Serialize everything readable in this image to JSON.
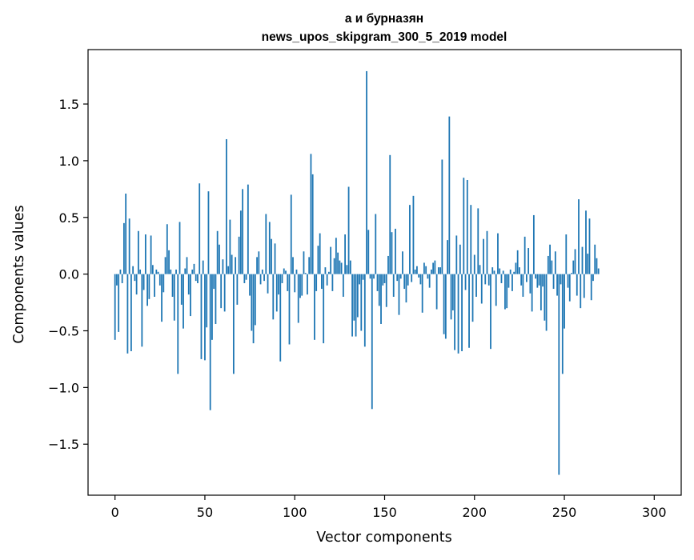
{
  "chart_data": {
    "type": "bar",
    "title": "а и бурназян",
    "subtitle": "news_upos_skipgram_300_5_2019 model",
    "xlabel": "Vector components",
    "ylabel": "Components values",
    "xlim": [
      -15,
      315
    ],
    "ylim": [
      -1.95,
      1.98
    ],
    "xticks": [
      0,
      50,
      100,
      150,
      200,
      250,
      300
    ],
    "xtick_labels": [
      "0",
      "50",
      "100",
      "150",
      "200",
      "250",
      "300"
    ],
    "yticks": [
      -1.5,
      -1.0,
      -0.5,
      0.0,
      0.5,
      1.0,
      1.5
    ],
    "ytick_labels": [
      "−1.5",
      "−1.0",
      "−0.5",
      "0.0",
      "0.5",
      "1.0",
      "1.5"
    ],
    "grid": false,
    "bar_color": "#1f77b4",
    "series": [
      {
        "name": "components",
        "values": [
          -0.58,
          -0.1,
          -0.51,
          0.04,
          -0.08,
          0.45,
          0.71,
          -0.7,
          0.49,
          -0.68,
          0.07,
          -0.06,
          -0.18,
          0.38,
          0.04,
          -0.64,
          -0.14,
          0.35,
          -0.28,
          -0.22,
          0.34,
          0.08,
          -0.2,
          0.04,
          0.02,
          -0.1,
          -0.42,
          -0.16,
          0.15,
          0.44,
          0.21,
          0.04,
          -0.2,
          -0.41,
          0.04,
          -0.88,
          0.46,
          -0.27,
          -0.48,
          0.05,
          0.15,
          -0.18,
          -0.37,
          0.04,
          0.09,
          -0.06,
          -0.08,
          0.8,
          -0.75,
          0.12,
          -0.76,
          -0.47,
          0.73,
          -1.2,
          -0.58,
          -0.13,
          -0.44,
          0.38,
          0.26,
          -0.3,
          0.13,
          -0.33,
          1.19,
          0.07,
          0.48,
          0.17,
          -0.88,
          0.15,
          -0.27,
          0.33,
          0.56,
          0.75,
          -0.08,
          -0.05,
          0.79,
          -0.19,
          -0.5,
          -0.61,
          -0.45,
          0.15,
          0.2,
          -0.09,
          0.04,
          -0.06,
          0.53,
          -0.17,
          0.46,
          0.31,
          -0.4,
          0.27,
          -0.33,
          -0.18,
          -0.77,
          -0.08,
          0.05,
          0.03,
          -0.15,
          -0.62,
          0.7,
          0.15,
          -0.16,
          0.04,
          -0.43,
          -0.21,
          -0.19,
          0.2,
          0.01,
          -0.18,
          0.15,
          1.06,
          0.88,
          -0.58,
          -0.15,
          0.25,
          0.36,
          -0.13,
          -0.61,
          0.06,
          -0.1,
          0.02,
          0.24,
          -0.15,
          0.14,
          0.32,
          0.19,
          0.12,
          0.1,
          -0.2,
          0.35,
          0.08,
          0.77,
          0.12,
          -0.55,
          -0.41,
          -0.55,
          -0.38,
          -0.09,
          -0.5,
          -0.05,
          -0.64,
          1.79,
          0.39,
          -0.04,
          -1.19,
          -0.04,
          0.53,
          -0.15,
          -0.28,
          -0.44,
          -0.1,
          -0.08,
          -0.29,
          0.16,
          1.05,
          0.37,
          -0.2,
          0.4,
          -0.06,
          -0.36,
          -0.04,
          0.2,
          -0.13,
          -0.25,
          -0.1,
          0.61,
          -0.07,
          0.69,
          0.04,
          0.07,
          -0.03,
          -0.09,
          -0.34,
          0.1,
          0.07,
          -0.04,
          -0.12,
          0.04,
          0.1,
          0.12,
          -0.31,
          0.06,
          0.06,
          1.01,
          -0.53,
          -0.57,
          0.3,
          1.39,
          -0.4,
          -0.32,
          -0.67,
          0.34,
          -0.7,
          0.26,
          -0.68,
          0.85,
          -0.14,
          0.83,
          -0.65,
          0.61,
          -0.42,
          0.17,
          -0.2,
          0.58,
          0.08,
          -0.26,
          0.31,
          -0.09,
          0.38,
          -0.1,
          -0.66,
          0.06,
          0.03,
          -0.28,
          0.36,
          0.05,
          -0.08,
          0.03,
          -0.31,
          -0.3,
          -0.12,
          0.04,
          -0.15,
          0.02,
          0.1,
          0.21,
          0.06,
          -0.1,
          -0.2,
          0.33,
          -0.07,
          0.23,
          -0.17,
          -0.33,
          0.52,
          -0.04,
          -0.12,
          -0.1,
          -0.32,
          -0.11,
          -0.41,
          -0.5,
          0.16,
          0.26,
          0.12,
          -0.13,
          0.2,
          -0.19,
          -1.77,
          -0.09,
          -0.88,
          -0.48,
          0.35,
          -0.12,
          -0.24,
          0.01,
          0.12,
          0.22,
          -0.19,
          0.66,
          -0.3,
          0.24,
          -0.21,
          0.56,
          0.18,
          0.49,
          -0.23,
          -0.06,
          0.26,
          0.14,
          0.05
        ]
      }
    ]
  }
}
